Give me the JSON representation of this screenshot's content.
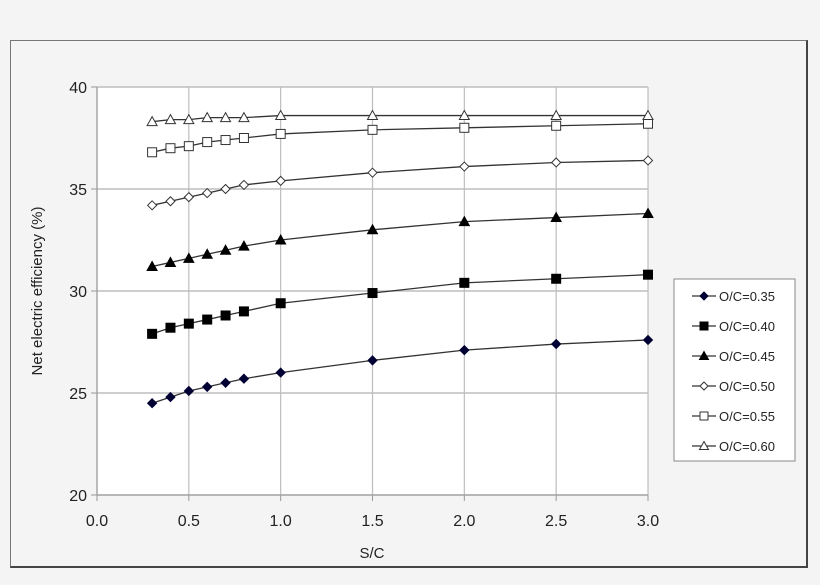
{
  "chart_data": {
    "type": "line",
    "title": "",
    "xlabel": "S/C",
    "ylabel": "Net electric efficiency (%)",
    "xlim": [
      0.0,
      3.0
    ],
    "ylim": [
      20,
      40
    ],
    "xticks": [
      "0.0",
      "0.5",
      "1.0",
      "1.5",
      "2.0",
      "2.5",
      "3.0"
    ],
    "yticks": [
      "20",
      "25",
      "30",
      "35",
      "40"
    ],
    "grid": true,
    "legend_position": "right",
    "x": [
      0.3,
      0.4,
      0.5,
      0.6,
      0.7,
      0.8,
      1.0,
      1.5,
      2.0,
      2.5,
      3.0
    ],
    "series": [
      {
        "name": "O/C=0.35",
        "marker": "filled-diamond",
        "color": "#000033",
        "values": [
          24.5,
          24.8,
          25.1,
          25.3,
          25.5,
          25.7,
          26.0,
          26.6,
          27.1,
          27.4,
          27.6
        ]
      },
      {
        "name": "O/C=0.40",
        "marker": "filled-square",
        "color": "#000000",
        "values": [
          27.9,
          28.2,
          28.4,
          28.6,
          28.8,
          29.0,
          29.4,
          29.9,
          30.4,
          30.6,
          30.8
        ]
      },
      {
        "name": "O/C=0.45",
        "marker": "filled-triangle",
        "color": "#000000",
        "values": [
          31.2,
          31.4,
          31.6,
          31.8,
          32.0,
          32.2,
          32.5,
          33.0,
          33.4,
          33.6,
          33.8
        ]
      },
      {
        "name": "O/C=0.50",
        "marker": "open-diamond",
        "color": "#333333",
        "values": [
          34.2,
          34.4,
          34.6,
          34.8,
          35.0,
          35.2,
          35.4,
          35.8,
          36.1,
          36.3,
          36.4
        ]
      },
      {
        "name": "O/C=0.55",
        "marker": "open-square",
        "color": "#333333",
        "values": [
          36.8,
          37.0,
          37.1,
          37.3,
          37.4,
          37.5,
          37.7,
          37.9,
          38.0,
          38.1,
          38.2
        ]
      },
      {
        "name": "O/C=0.60",
        "marker": "open-triangle",
        "color": "#333333",
        "values": [
          38.3,
          38.4,
          38.4,
          38.5,
          38.5,
          38.5,
          38.6,
          38.6,
          38.6,
          38.6,
          38.6
        ]
      }
    ]
  }
}
